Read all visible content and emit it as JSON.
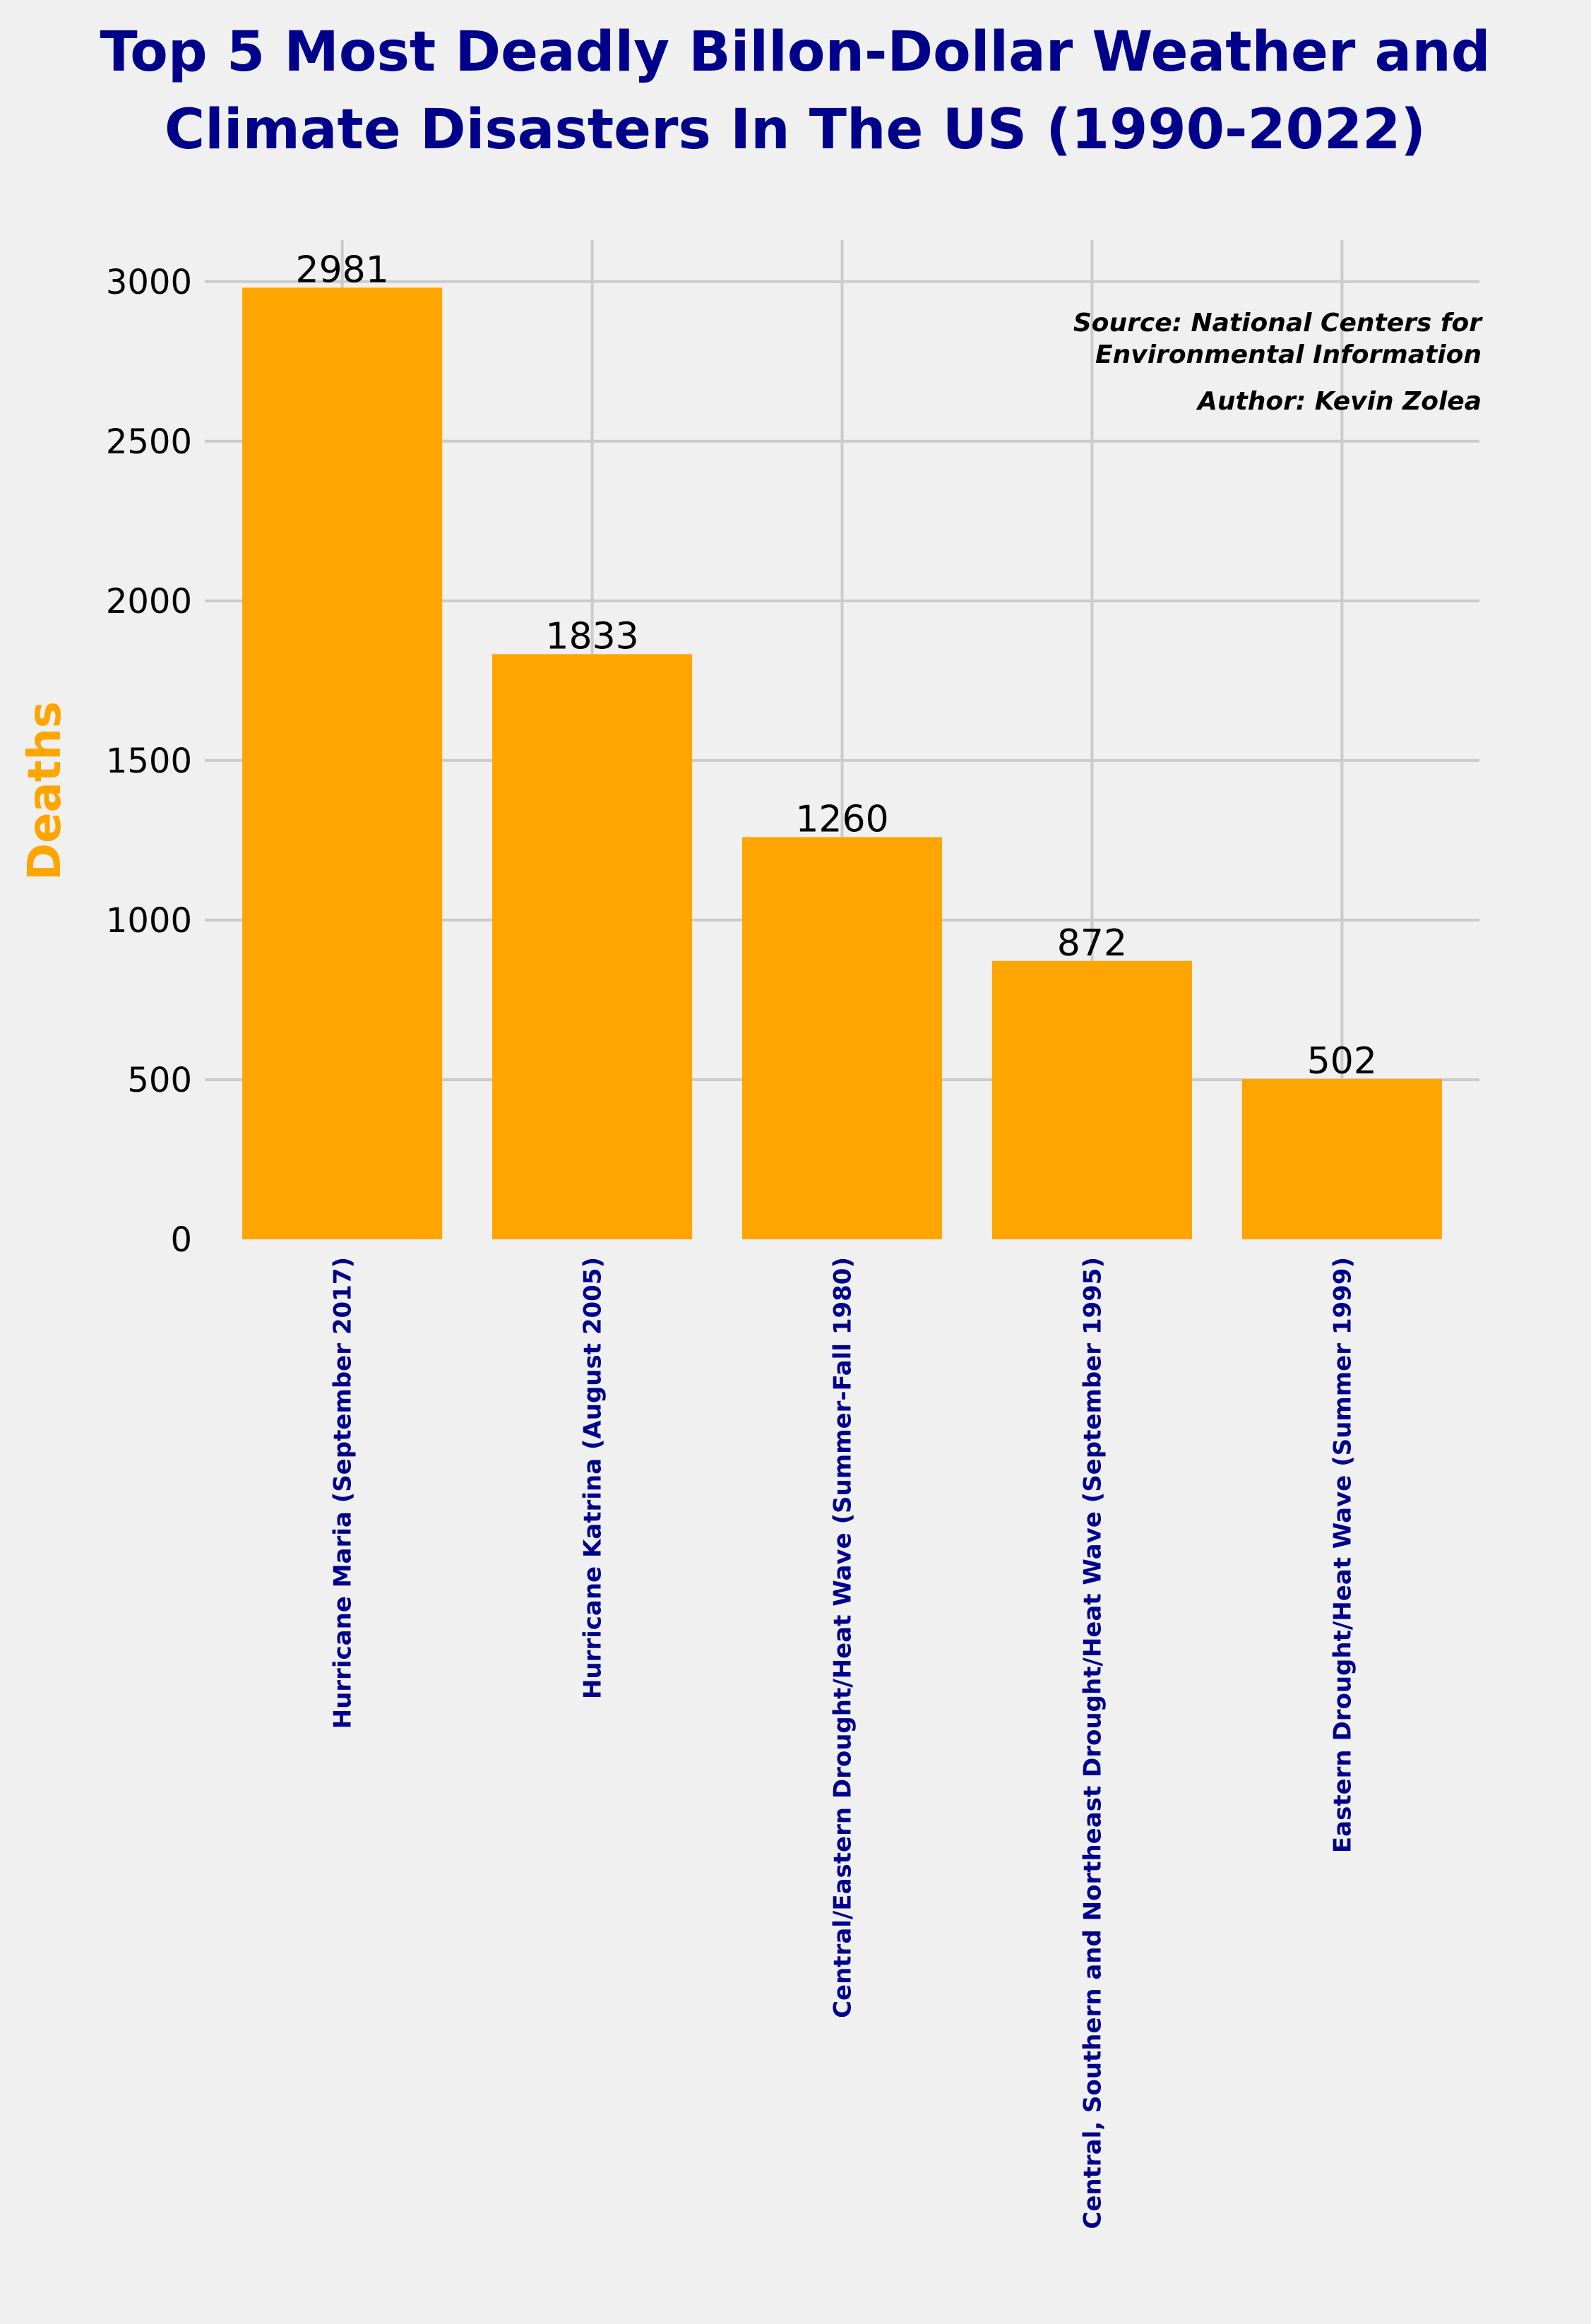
{
  "chart_data": {
    "type": "bar",
    "title_line1": "Top 5 Most Deadly Billon-Dollar Weather and",
    "title_line2": "Climate Disasters In The US (1990-2022)",
    "xlabel": "",
    "ylabel": "Deaths",
    "categories": [
      "Hurricane Maria (September 2017)",
      "Hurricane Katrina (August 2005)",
      "Central/Eastern Drought/Heat Wave (Summer-Fall 1980)",
      "Central, Southern and Northeast Drought/Heat Wave (September 1995)",
      "Eastern Drought/Heat Wave (Summer 1999)"
    ],
    "values": [
      2981,
      1833,
      1260,
      872,
      502
    ],
    "ylim": [
      0,
      3130
    ],
    "yticks": [
      0,
      500,
      1000,
      1500,
      2000,
      2500,
      3000
    ],
    "grid": true,
    "bar_color": "#ffa500",
    "ylabel_color": "#ffa500",
    "title_color": "#00008b",
    "category_color": "#00008b",
    "annotations": {
      "source_line1": "Source: National Centers for",
      "source_line2": "Environmental Information",
      "author": "Author: Kevin Zolea"
    }
  }
}
